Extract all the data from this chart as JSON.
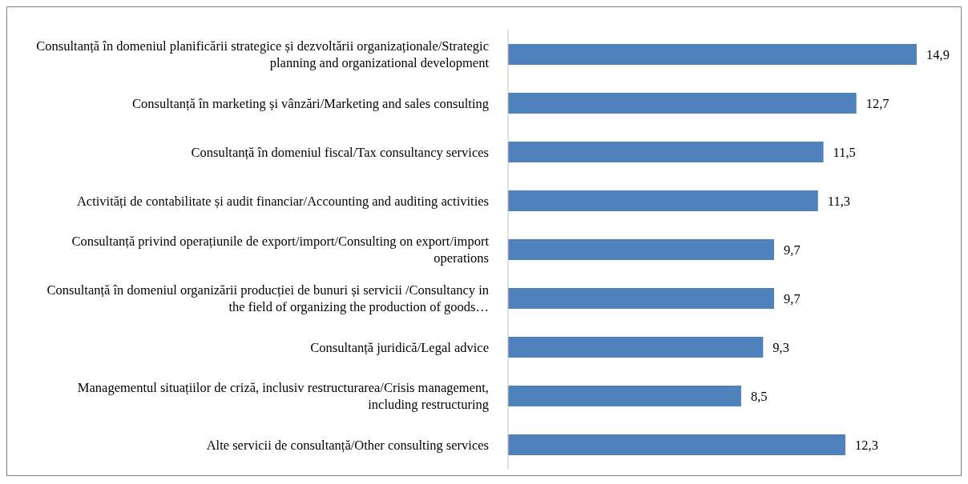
{
  "chart_data": {
    "type": "bar",
    "orientation": "horizontal",
    "data_labels": true,
    "color": "#4f81bd",
    "categories": [
      "Consultanță în domeniul planificării strategice și dezvoltării organizaționale/Strategic planning and organizational development",
      "Consultanță în marketing și vânzări/Marketing and sales consulting",
      "Consultanță în domeniul fiscal/Tax consultancy services",
      "Activități de contabilitate și audit financiar/Accounting and auditing activities",
      "Consultanță privind operațiunile de export/import/Consulting on export/import operations",
      "Consultanță în domeniul organizării producției de bunuri și servicii /Consultancy in the field of organizing the production of goods…",
      "Consultanță juridică/Legal advice",
      "Managementul situațiilor de criză, inclusiv restructurarea/Crisis management, including restructuring",
      "Alte servicii de consultanță/Other consulting services"
    ],
    "values": [
      14.9,
      12.7,
      11.5,
      11.3,
      9.7,
      9.7,
      9.3,
      8.5,
      12.3
    ],
    "value_labels": [
      "14,9",
      "12,7",
      "11,5",
      "11,3",
      "9,7",
      "9,7",
      "9,3",
      "8,5",
      "12,3"
    ]
  }
}
